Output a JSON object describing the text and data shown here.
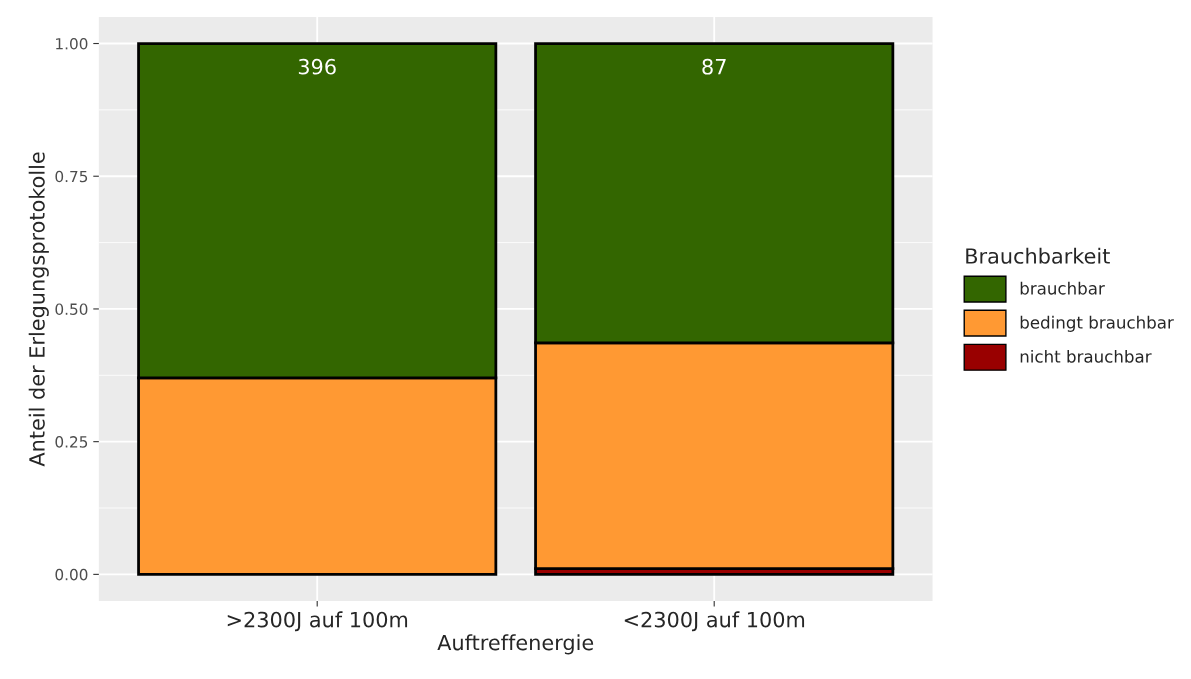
{
  "chart_data": {
    "type": "bar",
    "stacked": true,
    "xlabel": "Auftreffenergie",
    "ylabel": "Anteil der Erlegungsprotokolle",
    "legend_title": "Brauchbarkeit",
    "categories": [
      ">2300J auf 100m",
      "<2300J auf 100m"
    ],
    "series": [
      {
        "name": "nicht brauchbar",
        "color": "#990000",
        "values": [
          0,
          0.011
        ]
      },
      {
        "name": "bedingt brauchbar",
        "color": "#ff9933",
        "values": [
          0.37,
          0.425
        ]
      },
      {
        "name": "brauchbar",
        "color": "#336600",
        "values": [
          0.63,
          0.564
        ]
      }
    ],
    "ylim": [
      -0.05,
      1.05
    ],
    "yticks": [
      {
        "value": 0,
        "label": "0.00"
      },
      {
        "value": 0.25,
        "label": "0.25"
      },
      {
        "value": 0.5,
        "label": "0.50"
      },
      {
        "value": 0.75,
        "label": "0.75"
      },
      {
        "value": 1,
        "label": "1.00"
      }
    ],
    "annotations": [
      "396",
      "87"
    ],
    "grid": true,
    "legend": "right"
  }
}
